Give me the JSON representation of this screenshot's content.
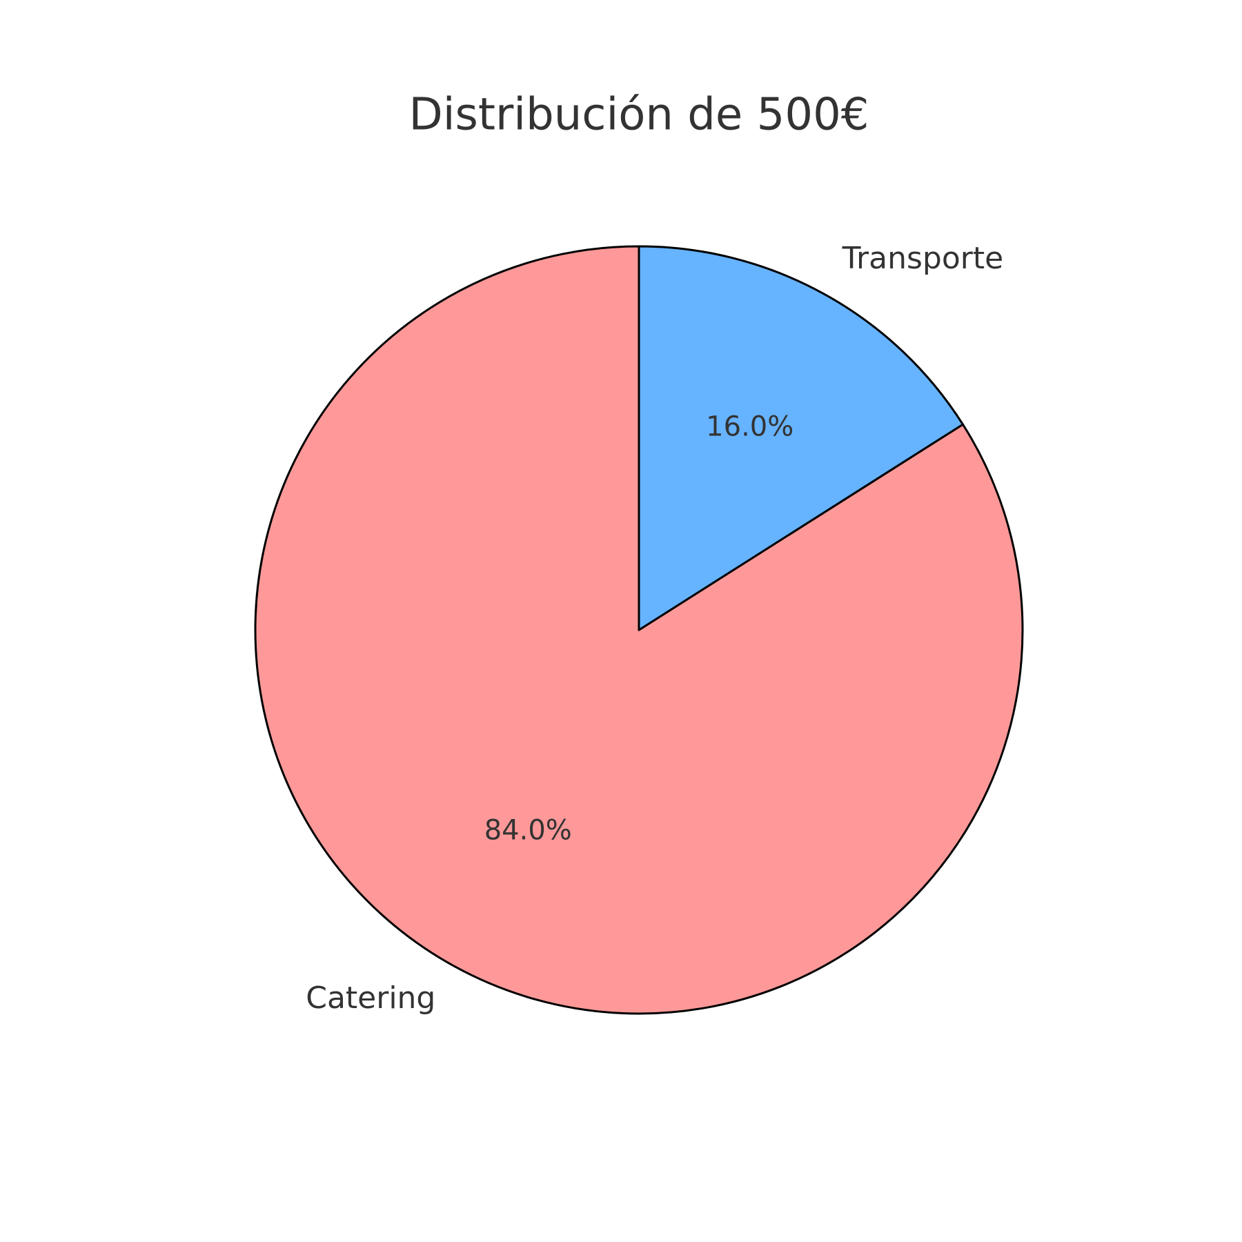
{
  "chart_data": {
    "type": "pie",
    "title": "Distribución de 500€",
    "categories": [
      "Catering",
      "Transporte"
    ],
    "values": [
      84,
      16
    ],
    "value_labels": [
      "84.0%",
      "16.0%"
    ],
    "colors": [
      "#ff9999",
      "#66b3ff"
    ]
  }
}
